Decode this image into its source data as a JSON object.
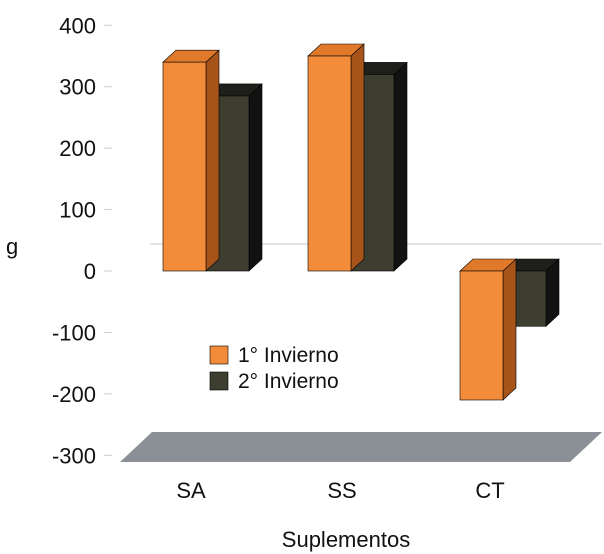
{
  "chart_data": {
    "type": "bar",
    "title": "",
    "xlabel": "Suplementos",
    "ylabel": "g",
    "ylim": [
      -300,
      400
    ],
    "yticks": [
      400,
      300,
      200,
      100,
      0,
      -100,
      -200,
      -300
    ],
    "categories": [
      "SA",
      "SS",
      "CT"
    ],
    "series": [
      {
        "name": "1° Invierno",
        "values": [
          340,
          350,
          -210
        ]
      },
      {
        "name": "2° Invierno",
        "values": [
          285,
          320,
          -90
        ]
      }
    ],
    "legend_placement": "center",
    "grid": false,
    "colors": {
      "series1": "#F28C3A",
      "series1_side": "#A6541A",
      "series1_top": "#E07A2A",
      "series2": "#3D3D30",
      "series2_side": "#121212",
      "series2_top": "#1E1E1A",
      "floor": "#8A9096"
    }
  }
}
